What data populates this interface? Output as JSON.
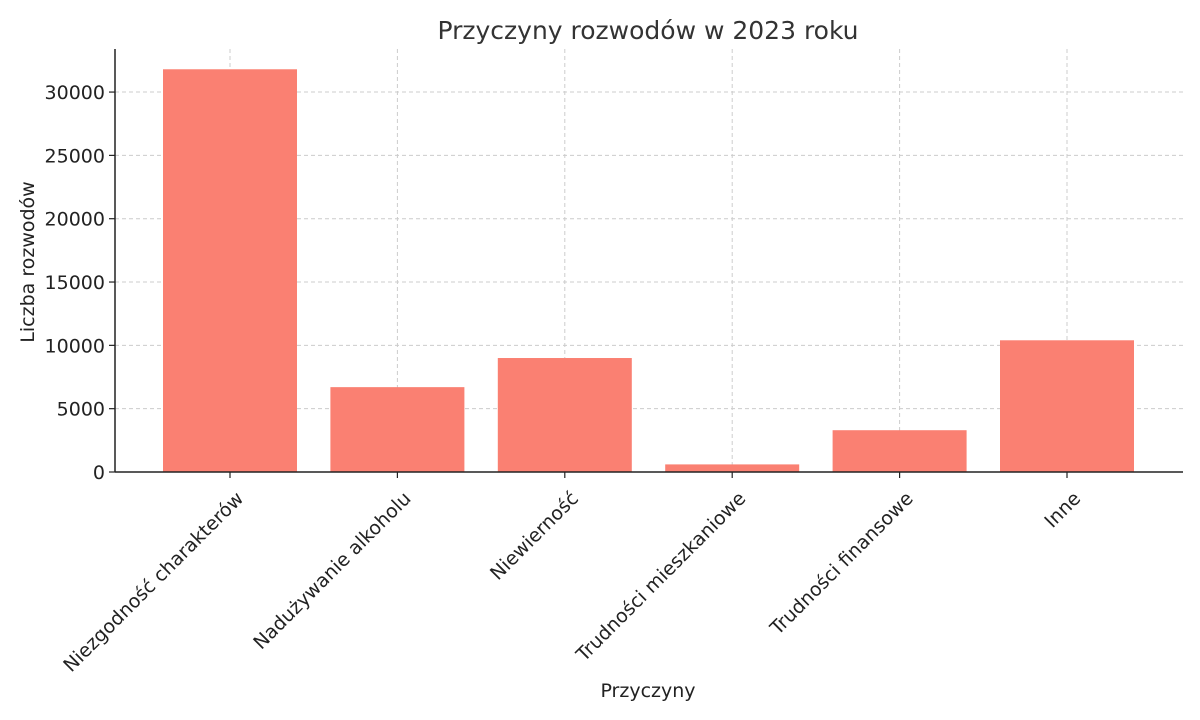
{
  "chart_data": {
    "type": "bar",
    "title": "Przyczyny rozwodów w 2023 roku",
    "xlabel": "Przyczyny",
    "ylabel": "Liczba rozwodów",
    "categories": [
      "Niezgodność charakterów",
      "Nadużywanie alkoholu",
      "Niewierność",
      "Trudności mieszkaniowe",
      "Trudności finansowe",
      "Inne"
    ],
    "values": [
      31800,
      6700,
      9000,
      600,
      3300,
      10400
    ],
    "ylim": [
      0,
      33400
    ],
    "yticks": [
      0,
      5000,
      10000,
      15000,
      20000,
      25000,
      30000
    ],
    "grid": true,
    "legend": "none",
    "colors": {
      "bar": "#fa8072",
      "axis": "#222222",
      "grid": "#cccccc",
      "title": "#333333"
    }
  }
}
